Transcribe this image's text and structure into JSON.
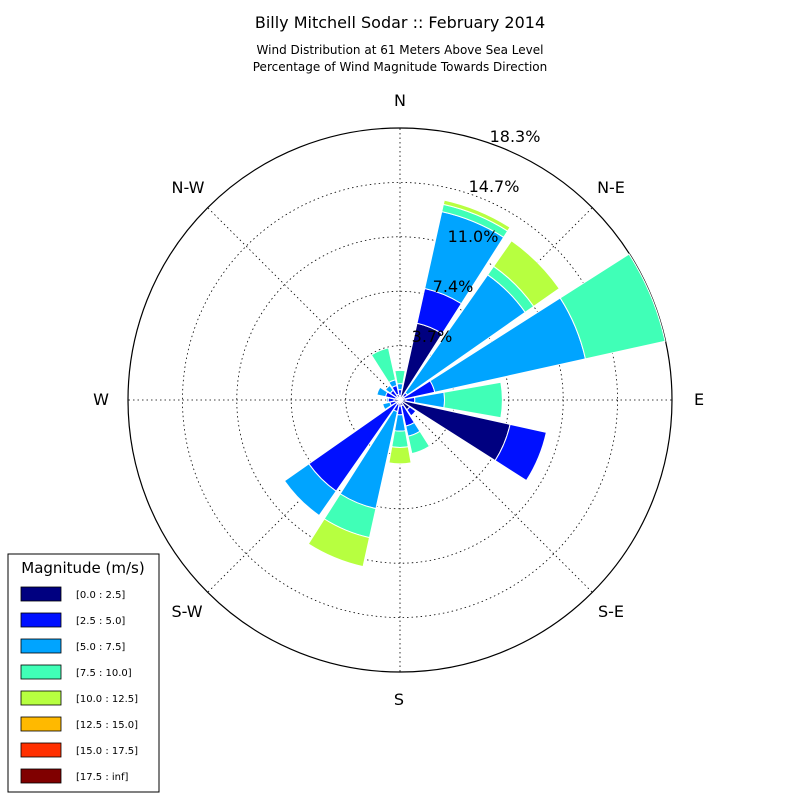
{
  "chart_data": {
    "type": "windrose",
    "title": "Billy Mitchell Sodar :: February 2014",
    "subtitle_lines": [
      "Wind Distribution at 61 Meters Above Sea Level",
      "Percentage of Wind Magnitude Towards Direction"
    ],
    "directions": [
      "N",
      "N-E",
      "E",
      "S-E",
      "S",
      "S-W",
      "W",
      "N-W"
    ],
    "radial_ticks": [
      "3.7%",
      "7.4%",
      "11.0%",
      "14.7%",
      "18.3%"
    ],
    "radial_values": [
      3.66,
      7.33,
      11.0,
      14.66,
      18.33
    ],
    "rmax": 18.33,
    "legend": {
      "title": "Magnitude (m/s)",
      "bins": [
        {
          "label": "[0.0 : 2.5]",
          "color": "#000080"
        },
        {
          "label": "[2.5 : 5.0]",
          "color": "#0010ff"
        },
        {
          "label": "[5.0 : 7.5]",
          "color": "#00a4ff"
        },
        {
          "label": "[7.5 : 10.0]",
          "color": "#40ffb7"
        },
        {
          "label": "[10.0 : 12.5]",
          "color": "#b7ff40"
        },
        {
          "label": "[12.5 : 15.0]",
          "color": "#ffb900"
        },
        {
          "label": "[15.0 : 17.5]",
          "color": "#ff3000"
        },
        {
          "label": "[17.5 : inf]",
          "color": "#800000"
        }
      ]
    },
    "sector_width_deg": 20,
    "sectors": [
      {
        "direction_deg": 0,
        "cumulative": [
          0.3,
          0.7,
          1.1,
          2.0
        ]
      },
      {
        "direction_deg": 22.5,
        "cumulative": [
          5.3,
          7.7,
          13.0,
          13.5,
          13.8
        ]
      },
      {
        "direction_deg": 45,
        "cumulative": [
          0.3,
          0.6,
          10.3,
          11.0,
          13.1
        ]
      },
      {
        "direction_deg": 67.5,
        "cumulative": [
          0.3,
          2.4,
          12.8,
          18.3
        ]
      },
      {
        "direction_deg": 90,
        "cumulative": [
          0.4,
          1.0,
          3.0,
          6.9
        ]
      },
      {
        "direction_deg": 112.5,
        "cumulative": [
          7.6,
          10.1
        ]
      },
      {
        "direction_deg": 135,
        "cumulative": [
          0.8,
          1.3
        ]
      },
      {
        "direction_deg": 157.5,
        "cumulative": [
          0.4,
          1.8,
          2.5,
          3.7
        ]
      },
      {
        "direction_deg": 180,
        "cumulative": [
          0.4,
          1.0,
          2.1,
          3.2,
          4.3
        ]
      },
      {
        "direction_deg": 202.5,
        "cumulative": [
          0.3,
          0.8,
          7.5,
          9.5,
          11.5
        ]
      },
      {
        "direction_deg": 225,
        "cumulative": [
          0.3,
          7.5,
          9.5
        ]
      },
      {
        "direction_deg": 247.5,
        "cumulative": [
          0.3,
          0.7,
          1.2
        ]
      },
      {
        "direction_deg": 270,
        "cumulative": [
          0.4,
          0.8,
          0.9
        ]
      },
      {
        "direction_deg": 292.5,
        "cumulative": [
          0.3,
          1.0,
          1.6
        ]
      },
      {
        "direction_deg": 315,
        "cumulative": [
          0.3,
          0.8,
          1.2
        ]
      },
      {
        "direction_deg": 337.5,
        "cumulative": [
          0.4,
          1.0,
          1.4,
          3.6
        ]
      }
    ]
  }
}
